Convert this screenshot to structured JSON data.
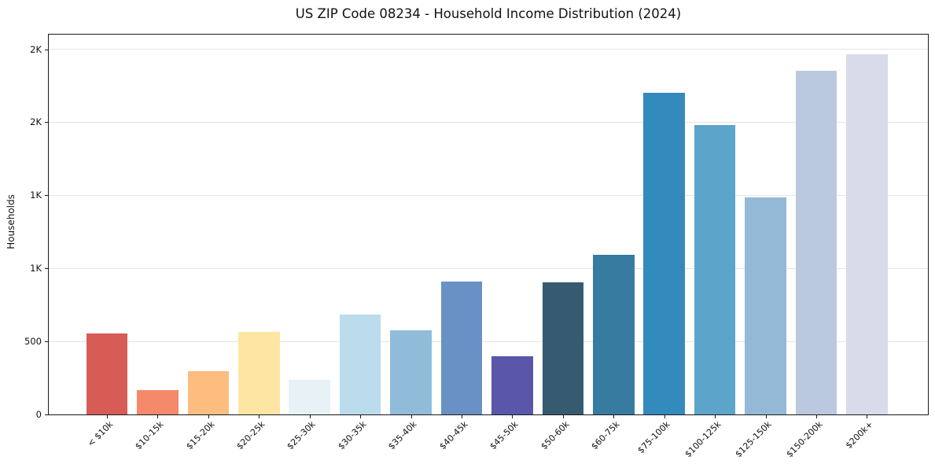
{
  "figure": {
    "background": "#ffffff"
  },
  "chart_data": {
    "type": "bar",
    "title": "US ZIP Code 08234 - Household Income Distribution (2024)",
    "xlabel": "",
    "ylabel": "Households",
    "categories": [
      "< $10k",
      "$10-15k",
      "$15-20k",
      "$20-25k",
      "$25-30k",
      "$30-35k",
      "$35-40k",
      "$40-45k",
      "$45-50k",
      "$50-60k",
      "$60-75k",
      "$75-100k",
      "$100-125k",
      "$125-150k",
      "$150-200k",
      "$200k+"
    ],
    "values": [
      555,
      165,
      295,
      565,
      235,
      685,
      575,
      910,
      400,
      905,
      1095,
      2200,
      1980,
      1485,
      2350,
      2465
    ],
    "bar_colors": [
      "#d65c55",
      "#f48a69",
      "#fcbd7e",
      "#fde5a4",
      "#e7f1f6",
      "#bbdcec",
      "#90bcda",
      "#6991c5",
      "#5a56a9",
      "#365b71",
      "#377ba1",
      "#338abd",
      "#5ca4ca",
      "#93b9d7",
      "#bac9df",
      "#d8dbe9"
    ],
    "ylim": [
      0,
      2600
    ],
    "yticks": [
      {
        "value": 0,
        "label": "0"
      },
      {
        "value": 500,
        "label": "500"
      },
      {
        "value": 1000,
        "label": "1K"
      },
      {
        "value": 1500,
        "label": "1K"
      },
      {
        "value": 2000,
        "label": "2K"
      },
      {
        "value": 2500,
        "label": "2K"
      }
    ],
    "grid": "horizontal-only",
    "gridline_color": "#e5e5e5",
    "legend": "none",
    "text_color": "#111111",
    "x_tick_rotation": 45
  }
}
